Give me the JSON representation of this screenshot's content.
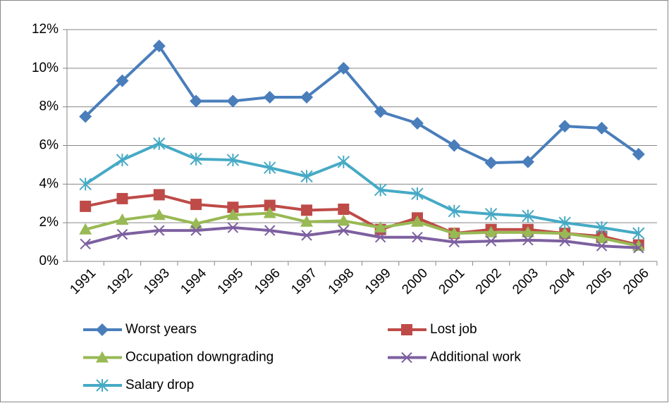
{
  "chart_data": {
    "type": "line",
    "categories": [
      "1991",
      "1992",
      "1993",
      "1994",
      "1995",
      "1996",
      "1997",
      "1998",
      "1999",
      "2000",
      "2001",
      "2002",
      "2003",
      "2004",
      "2005",
      "2006"
    ],
    "ylim": [
      0,
      12
    ],
    "yticks": [
      {
        "value": 0,
        "label": "0%"
      },
      {
        "value": 2,
        "label": "2%"
      },
      {
        "value": 4,
        "label": "4%"
      },
      {
        "value": 6,
        "label": "6%"
      },
      {
        "value": 8,
        "label": "8%"
      },
      {
        "value": 10,
        "label": "10%"
      },
      {
        "value": 12,
        "label": "12%"
      }
    ],
    "grid": true,
    "legend": "bottom",
    "series": [
      {
        "name": "Worst years",
        "color": "#4a7ebb",
        "marker": "diamond",
        "values": [
          7.5,
          9.35,
          11.15,
          8.3,
          8.3,
          8.5,
          8.5,
          10.0,
          7.75,
          7.15,
          6.0,
          5.1,
          5.15,
          7.0,
          6.9,
          5.55
        ]
      },
      {
        "name": "Lost job",
        "color": "#be4b48",
        "marker": "square",
        "values": [
          2.85,
          3.25,
          3.45,
          2.95,
          2.8,
          2.9,
          2.65,
          2.7,
          1.65,
          2.25,
          1.45,
          1.65,
          1.65,
          1.45,
          1.3,
          0.85
        ]
      },
      {
        "name": "Occupation downgrading",
        "color": "#98b954",
        "marker": "triangle",
        "values": [
          1.65,
          2.15,
          2.4,
          1.95,
          2.4,
          2.5,
          2.05,
          2.1,
          1.75,
          2.05,
          1.45,
          1.5,
          1.5,
          1.45,
          1.2,
          0.8
        ]
      },
      {
        "name": "Additional work",
        "color": "#7d60a0",
        "marker": "x",
        "values": [
          0.9,
          1.4,
          1.6,
          1.6,
          1.75,
          1.6,
          1.35,
          1.6,
          1.25,
          1.25,
          1.0,
          1.05,
          1.1,
          1.05,
          0.8,
          0.7
        ]
      },
      {
        "name": "Salary drop",
        "color": "#46aac5",
        "marker": "star",
        "values": [
          4.0,
          5.25,
          6.1,
          5.3,
          5.25,
          4.85,
          4.4,
          5.15,
          3.7,
          3.5,
          2.6,
          2.45,
          2.35,
          2.0,
          1.75,
          1.45
        ]
      }
    ]
  }
}
